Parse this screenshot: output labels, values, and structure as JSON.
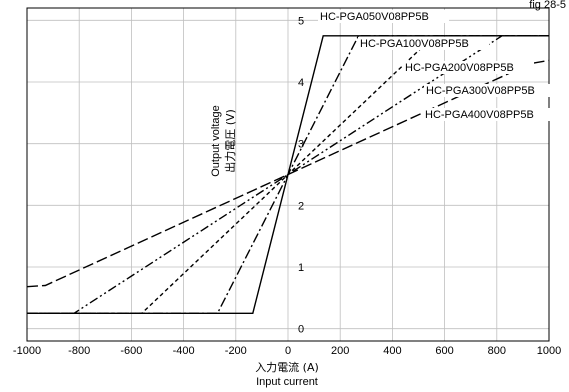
{
  "header_fragment": "fig 28-5",
  "chart_data": {
    "type": "line",
    "xlabel_jp": "入力電流 (A)",
    "xlabel_en": "Input current",
    "ylabel_en": "Output voltage",
    "ylabel_jp": "出力電圧 (V)",
    "xlim": [
      -1000,
      1000
    ],
    "ylim": [
      -0.2,
      5.2
    ],
    "x_ticks": [
      "-1000",
      "-800",
      "-600",
      "-400",
      "-200",
      "0",
      "200",
      "400",
      "600",
      "800",
      "1000"
    ],
    "y_ticks": [
      "0",
      "1",
      "2",
      "3",
      "4",
      "5"
    ],
    "grid": true,
    "series": [
      {
        "name": "HC-PGA050V08PP5B",
        "dash": "solid",
        "x": [
          -1000,
          -135,
          135,
          1000
        ],
        "y": [
          0.25,
          0.25,
          4.75,
          4.75
        ]
      },
      {
        "name": "HC-PGA100V08PP5B",
        "dash": "dashdot",
        "x": [
          -1000,
          -270,
          270,
          1000
        ],
        "y": [
          0.25,
          0.25,
          4.75,
          4.75
        ]
      },
      {
        "name": "HC-PGA200V08PP5B",
        "dash": "dash-short",
        "x": [
          -1000,
          -560,
          560,
          1000
        ],
        "y": [
          0.25,
          0.25,
          4.75,
          4.75
        ]
      },
      {
        "name": "HC-PGA300V08PP5B",
        "dash": "dashdotdot",
        "x": [
          -1000,
          -820,
          820,
          1000
        ],
        "y": [
          0.25,
          0.25,
          4.75,
          4.75
        ]
      },
      {
        "name": "HC-PGA400V08PP5B",
        "dash": "dash-long",
        "x": [
          -1000,
          -930,
          930,
          1000
        ],
        "y": [
          0.68,
          0.7,
          4.3,
          4.35
        ]
      }
    ],
    "legend_labels": [
      "HC-PGA050V08PP5B",
      "HC-PGA100V08PP5B",
      "HC-PGA200V08PP5B",
      "HC-PGA300V08PP5B",
      "HC-PGA400V08PP5B"
    ]
  }
}
